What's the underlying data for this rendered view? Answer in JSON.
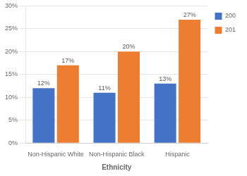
{
  "chart_data": {
    "type": "bar",
    "xlabel": "Ethnicity",
    "categories": [
      "Non-Hispanic White",
      "Non-Hispanic Black",
      "Hispanic"
    ],
    "series": [
      {
        "name": "200",
        "color": "#4472C4",
        "values": [
          12,
          11,
          13
        ],
        "value_labels": [
          "12%",
          "11%",
          "13%"
        ]
      },
      {
        "name": "201",
        "color": "#ED7D31",
        "values": [
          17,
          20,
          27
        ],
        "value_labels": [
          "17%",
          "20%",
          "27%"
        ]
      }
    ],
    "ylim": [
      0,
      30
    ],
    "yticks": [
      {
        "value": 0,
        "label": "0%"
      },
      {
        "value": 5,
        "label": "5%"
      },
      {
        "value": 10,
        "label": "10%"
      },
      {
        "value": 15,
        "label": "15%"
      },
      {
        "value": 20,
        "label": "20%"
      },
      {
        "value": 25,
        "label": "25%"
      },
      {
        "value": 30,
        "label": "30%"
      }
    ],
    "grid": true,
    "legend": "right",
    "data_labels": true
  }
}
